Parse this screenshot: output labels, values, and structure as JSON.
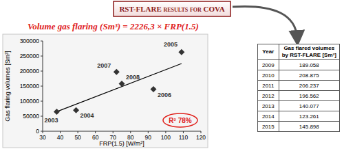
{
  "header": {
    "title": "RST-FLARE results for COVA"
  },
  "chart_data": {
    "type": "scatter",
    "title": "Volume gas flaring (Sm³) = 2226,3 × FRP(1.5)",
    "x_label": "FRP(1.5) [W/m²]",
    "y_label": "Gas flaring volumes [Sm³]",
    "labels": [
      "2003",
      "2004",
      "2005",
      "2006",
      "2007",
      "2008"
    ],
    "x": [
      38,
      49,
      109,
      93,
      72,
      75
    ],
    "values": [
      65000,
      70000,
      263000,
      140000,
      197000,
      158000
    ],
    "color": "#333333",
    "marker": "diamond",
    "trendline": {
      "x": [
        38,
        109
      ],
      "y": [
        65000,
        225000
      ]
    },
    "annotations": [
      "R² 78%"
    ],
    "xlim": [
      30,
      120
    ],
    "xticks": [
      30,
      40,
      50,
      60,
      70,
      80,
      90,
      100,
      110,
      120
    ],
    "ylim": [
      0,
      300000
    ],
    "yticks": [
      0,
      50000,
      100000,
      150000,
      200000,
      250000,
      300000
    ],
    "grid": false
  },
  "table": {
    "headers": [
      "Year",
      "Gas flared volumes by RST-FLARE [Sm³]"
    ],
    "rows": [
      [
        "2009",
        "189.058"
      ],
      [
        "2010",
        "208.875"
      ],
      [
        "2011",
        "206.237"
      ],
      [
        "2012",
        "196.562"
      ],
      [
        "2013",
        "140.077"
      ],
      [
        "2014",
        "123.261"
      ],
      [
        "2015",
        "145.898"
      ]
    ]
  }
}
